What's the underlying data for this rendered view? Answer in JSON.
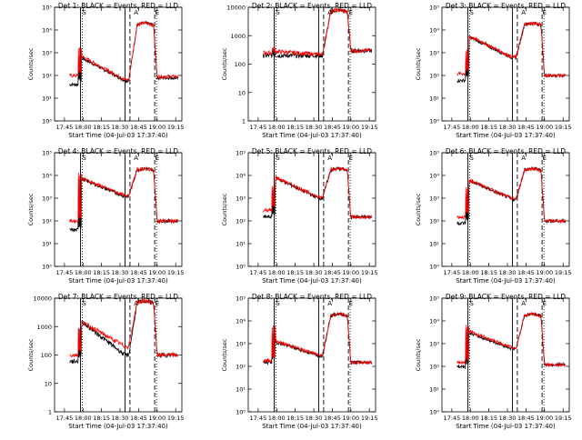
{
  "chart_data": [
    {
      "type": "line",
      "title": "Det 1: BLACK = Events, RED = LLD",
      "ylabel": "Counts/sec",
      "xlabel": "Start Time (04-Jul-03 17:37:40)",
      "x_ticks": [
        "17:45",
        "18:00",
        "18:15",
        "18:30",
        "18:45",
        "19:00",
        "19:15"
      ],
      "y_scale": "log",
      "ylim": [
        1,
        100000
      ],
      "y_ticks": [
        "10⁰",
        "10¹",
        "10²",
        "10³",
        "10⁴",
        "10⁵"
      ],
      "markers": {
        "solid": [
          "17:58",
          "18:34"
        ],
        "dashed": [
          "18:38",
          "18:58"
        ],
        "dotted": [
          "17:58",
          "18:58"
        ],
        "labels": [
          "S",
          "A",
          "E"
        ]
      },
      "series": [
        {
          "name": "Events",
          "color": "#000000",
          "profile": {
            "pre": 40,
            "spike": 800,
            "peak": 600,
            "decay": 60,
            "flare": 20000,
            "post": 80
          }
        },
        {
          "name": "LLD",
          "color": "#ff0000",
          "profile": {
            "pre": 100,
            "spike": 1500,
            "peak": 700,
            "decay": 65,
            "flare": 20000,
            "post": 90
          }
        }
      ]
    },
    {
      "type": "line",
      "title": "Det 2: BLACK = Events, RED = LLD",
      "ylabel": "Counts/sec",
      "xlabel": "Start Time (04-Jul-03 17:37:40)",
      "x_ticks": [
        "17:45",
        "18:00",
        "18:15",
        "18:30",
        "18:45",
        "19:00",
        "19:15"
      ],
      "y_scale": "log",
      "ylim": [
        1,
        10000
      ],
      "y_ticks": [
        "1",
        "10",
        "100",
        "1000",
        "10000"
      ],
      "markers": {
        "solid": [
          "17:58",
          "18:34"
        ],
        "dashed": [
          "18:38",
          "18:58"
        ],
        "dotted": [
          "17:58",
          "18:58"
        ],
        "labels": [
          "S",
          "A",
          "E"
        ]
      },
      "series": [
        {
          "name": "Events",
          "color": "#000000",
          "profile": {
            "pre": 200,
            "spike": 200,
            "peak": 200,
            "decay": 200,
            "flare": 8000,
            "post": 300
          }
        },
        {
          "name": "LLD",
          "color": "#ff0000",
          "profile": {
            "pre": 250,
            "spike": 250,
            "peak": 280,
            "decay": 220,
            "flare": 8000,
            "post": 300
          }
        }
      ]
    },
    {
      "type": "line",
      "title": "Det 3: BLACK = Events, RED = LLD",
      "ylabel": "Counts/sec",
      "xlabel": "Start Time (04-Jul-03 17:37:40)",
      "x_ticks": [
        "17:45",
        "18:00",
        "18:15",
        "18:30",
        "18:45",
        "19:00",
        "19:15"
      ],
      "y_scale": "log",
      "ylim": [
        1,
        100000
      ],
      "y_ticks": [
        "10⁰",
        "10¹",
        "10²",
        "10³",
        "10⁴",
        "10⁵"
      ],
      "markers": {
        "solid": [
          "17:58",
          "18:34"
        ],
        "dashed": [
          "18:38",
          "18:58"
        ],
        "dotted": [
          "17:58",
          "18:58"
        ],
        "labels": [
          "S",
          "A",
          "E"
        ]
      },
      "series": [
        {
          "name": "Events",
          "color": "#000000",
          "profile": {
            "pre": 60,
            "spike": 600,
            "peak": 5000,
            "decay": 600,
            "flare": 20000,
            "post": 100
          }
        },
        {
          "name": "LLD",
          "color": "#ff0000",
          "profile": {
            "pre": 120,
            "spike": 1200,
            "peak": 5500,
            "decay": 650,
            "flare": 20000,
            "post": 100
          }
        }
      ]
    },
    {
      "type": "line",
      "title": "Det 4: BLACK = Events, RED = LLD",
      "ylabel": "Counts/sec",
      "xlabel": "Start Time (04-Jul-03 17:37:40)",
      "x_ticks": [
        "17:45",
        "18:00",
        "18:15",
        "18:30",
        "18:45",
        "19:00",
        "19:15"
      ],
      "y_scale": "log",
      "ylim": [
        1,
        100000
      ],
      "y_ticks": [
        "10⁰",
        "10¹",
        "10²",
        "10³",
        "10⁴",
        "10⁵"
      ],
      "markers": {
        "solid": [
          "17:58",
          "18:34"
        ],
        "dashed": [
          "18:38",
          "18:58"
        ],
        "dotted": [
          "17:58",
          "18:58"
        ],
        "labels": [
          "S",
          "A",
          "E"
        ]
      },
      "series": [
        {
          "name": "Events",
          "color": "#000000",
          "profile": {
            "pre": 40,
            "spike": 8000,
            "peak": 7000,
            "decay": 1200,
            "flare": 20000,
            "post": 100
          }
        },
        {
          "name": "LLD",
          "color": "#ff0000",
          "profile": {
            "pre": 100,
            "spike": 12000,
            "peak": 7500,
            "decay": 1300,
            "flare": 20000,
            "post": 100
          }
        }
      ]
    },
    {
      "type": "line",
      "title": "Det 5: BLACK = Events, RED = LLD",
      "ylabel": "Counts/sec",
      "xlabel": "Start Time (04-Jul-03 17:37:40)",
      "x_ticks": [
        "17:45",
        "18:00",
        "18:15",
        "18:30",
        "18:45",
        "19:00",
        "19:15"
      ],
      "y_scale": "log",
      "ylim": [
        1,
        100000
      ],
      "y_ticks": [
        "10⁰",
        "10¹",
        "10²",
        "10³",
        "10⁴",
        "10⁵"
      ],
      "markers": {
        "solid": [
          "17:58",
          "18:34"
        ],
        "dashed": [
          "18:38",
          "18:58"
        ],
        "dotted": [
          "17:58",
          "18:58"
        ],
        "labels": [
          "S",
          "A",
          "E"
        ]
      },
      "series": [
        {
          "name": "Events",
          "color": "#000000",
          "profile": {
            "pre": 150,
            "spike": 2000,
            "peak": 8000,
            "decay": 1000,
            "flare": 20000,
            "post": 150
          }
        },
        {
          "name": "LLD",
          "color": "#ff0000",
          "profile": {
            "pre": 300,
            "spike": 3000,
            "peak": 8500,
            "decay": 1100,
            "flare": 20000,
            "post": 150
          }
        }
      ]
    },
    {
      "type": "line",
      "title": "Det 6: BLACK = Events, RED = LLD",
      "ylabel": "Counts/sec",
      "xlabel": "Start Time (04-Jul-03 17:37:40)",
      "x_ticks": [
        "17:45",
        "18:00",
        "18:15",
        "18:30",
        "18:45",
        "19:00",
        "19:15"
      ],
      "y_scale": "log",
      "ylim": [
        1,
        100000
      ],
      "y_ticks": [
        "10⁰",
        "10¹",
        "10²",
        "10³",
        "10⁴",
        "10⁵"
      ],
      "markers": {
        "solid": [
          "17:58",
          "18:34"
        ],
        "dashed": [
          "18:38",
          "18:58"
        ],
        "dotted": [
          "17:58",
          "18:58"
        ],
        "labels": [
          "S",
          "A",
          "E"
        ]
      },
      "series": [
        {
          "name": "Events",
          "color": "#000000",
          "profile": {
            "pre": 80,
            "spike": 1500,
            "peak": 6000,
            "decay": 900,
            "flare": 20000,
            "post": 100
          }
        },
        {
          "name": "LLD",
          "color": "#ff0000",
          "profile": {
            "pre": 150,
            "spike": 3000,
            "peak": 6500,
            "decay": 950,
            "flare": 20000,
            "post": 100
          }
        }
      ]
    },
    {
      "type": "line",
      "title": "Det 7: BLACK = Events, RED = LLD",
      "ylabel": "Counts/sec",
      "xlabel": "Start Time (04-Jul-03 17:37:40)",
      "x_ticks": [
        "17:45",
        "18:00",
        "18:15",
        "18:30",
        "18:45",
        "19:00",
        "19:15"
      ],
      "y_scale": "log",
      "ylim": [
        1,
        10000
      ],
      "y_ticks": [
        "1",
        "10",
        "100",
        "1000",
        "10000"
      ],
      "markers": {
        "solid": [
          "17:58",
          "18:34"
        ],
        "dashed": [
          "18:38",
          "18:58"
        ],
        "dotted": [
          "17:58",
          "18:58"
        ],
        "labels": [
          "S",
          "A",
          "E"
        ]
      },
      "series": [
        {
          "name": "Events",
          "color": "#000000",
          "profile": {
            "pre": 60,
            "spike": 900,
            "peak": 1500,
            "decay": 100,
            "flare": 8000,
            "post": 100
          }
        },
        {
          "name": "LLD",
          "color": "#ff0000",
          "profile": {
            "pre": 100,
            "spike": 1000,
            "peak": 1500,
            "decay": 200,
            "flare": 8000,
            "post": 100
          }
        }
      ]
    },
    {
      "type": "line",
      "title": "Det 8: BLACK = Events, RED = LLD",
      "ylabel": "Counts/sec",
      "xlabel": "Start Time (04-Jul-03 17:37:40)",
      "x_ticks": [
        "17:45",
        "18:00",
        "18:15",
        "18:30",
        "18:45",
        "19:00",
        "19:15"
      ],
      "y_scale": "log",
      "ylim": [
        1,
        100000
      ],
      "y_ticks": [
        "10⁰",
        "10¹",
        "10²",
        "10³",
        "10⁴",
        "10⁵"
      ],
      "markers": {
        "solid": [
          "17:58",
          "18:34"
        ],
        "dashed": [
          "18:38",
          "18:58"
        ],
        "dotted": [
          "17:58",
          "18:58"
        ],
        "labels": [
          "S",
          "A",
          "E"
        ]
      },
      "series": [
        {
          "name": "Events",
          "color": "#000000",
          "profile": {
            "pre": 150,
            "spike": 3000,
            "peak": 1200,
            "decay": 300,
            "flare": 20000,
            "post": 150
          }
        },
        {
          "name": "LLD",
          "color": "#ff0000",
          "profile": {
            "pre": 180,
            "spike": 6000,
            "peak": 1300,
            "decay": 320,
            "flare": 20000,
            "post": 150
          }
        }
      ]
    },
    {
      "type": "line",
      "title": "Det 9: BLACK = Events, RED = LLD",
      "ylabel": "Counts/sec",
      "xlabel": "Start Time (04-Jul-03 17:37:40)",
      "x_ticks": [
        "17:45",
        "18:00",
        "18:15",
        "18:30",
        "18:45",
        "19:00",
        "19:15"
      ],
      "y_scale": "log",
      "ylim": [
        1,
        100000
      ],
      "y_ticks": [
        "10⁰",
        "10¹",
        "10²",
        "10³",
        "10⁴",
        "10⁵"
      ],
      "markers": {
        "solid": [
          "17:58",
          "18:34"
        ],
        "dashed": [
          "18:38",
          "18:58"
        ],
        "dotted": [
          "17:58",
          "18:58"
        ],
        "labels": [
          "S",
          "A",
          "E"
        ]
      },
      "series": [
        {
          "name": "Events",
          "color": "#000000",
          "profile": {
            "pre": 100,
            "spike": 4000,
            "peak": 3000,
            "decay": 600,
            "flare": 20000,
            "post": 120
          }
        },
        {
          "name": "LLD",
          "color": "#ff0000",
          "profile": {
            "pre": 150,
            "spike": 6000,
            "peak": 3500,
            "decay": 650,
            "flare": 20000,
            "post": 120
          }
        }
      ]
    }
  ]
}
